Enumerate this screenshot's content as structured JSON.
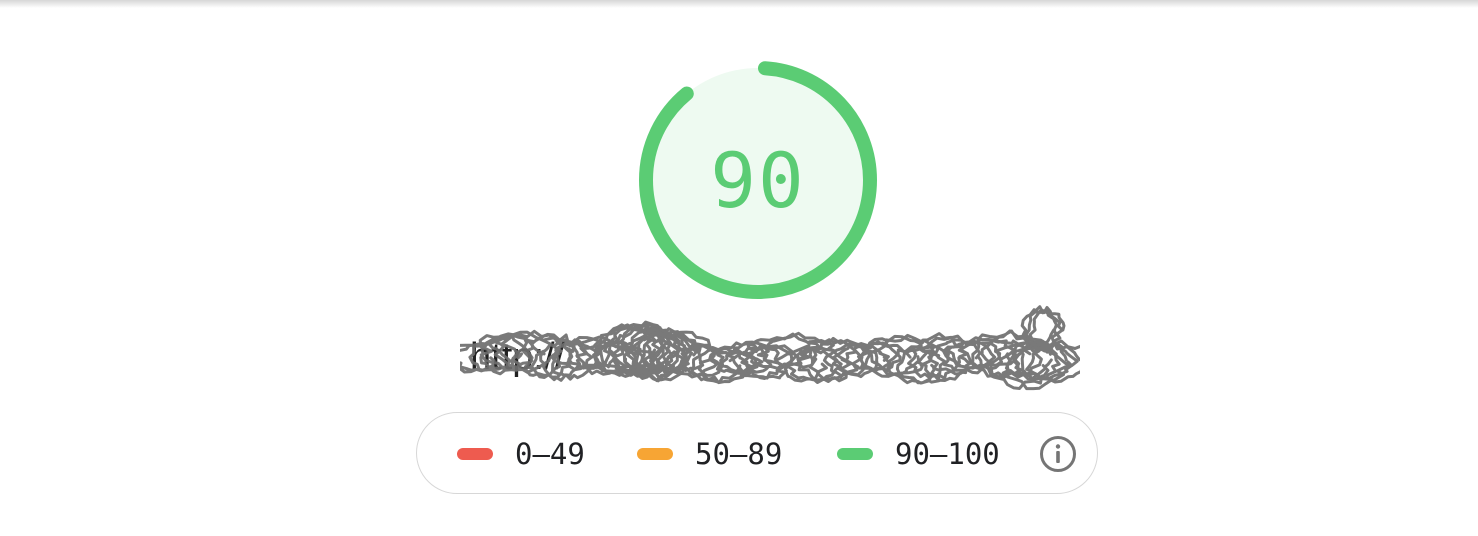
{
  "gauge": {
    "score": "90",
    "fraction": 0.9,
    "color": "#5bcc74",
    "fill_color": "#eefaf1"
  },
  "url": {
    "text": "http://",
    "redacted": true,
    "scribble_color": "#6e6e6e"
  },
  "legend": {
    "items": [
      {
        "label": "0–49",
        "color": "#ee5b4f"
      },
      {
        "label": "50–89",
        "color": "#f7a534"
      },
      {
        "label": "90–100",
        "color": "#5bcc74"
      }
    ],
    "info_icon": "info-circle-icon"
  }
}
